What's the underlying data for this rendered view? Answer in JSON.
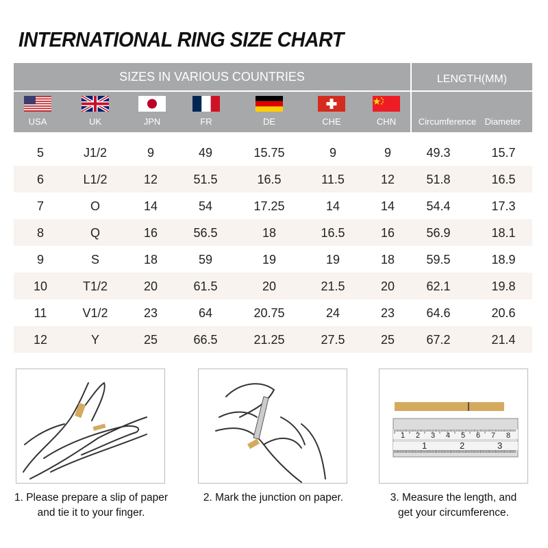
{
  "title": "INTERNATIONAL RING SIZE CHART",
  "header": {
    "sizes_label": "SIZES IN VARIOUS COUNTRIES",
    "length_label": "LENGTH(MM)",
    "countries": [
      {
        "code": "USA",
        "flag": "usa-flag"
      },
      {
        "code": "UK",
        "flag": "uk-flag"
      },
      {
        "code": "JPN",
        "flag": "japan-flag"
      },
      {
        "code": "FR",
        "flag": "france-flag"
      },
      {
        "code": "DE",
        "flag": "germany-flag"
      },
      {
        "code": "CHE",
        "flag": "switzerland-flag"
      },
      {
        "code": "CHN",
        "flag": "china-flag"
      }
    ],
    "length_columns": [
      "Circumference",
      "Diameter"
    ]
  },
  "rows": [
    [
      "5",
      "J1/2",
      "9",
      "49",
      "15.75",
      "9",
      "9",
      "49.3",
      "15.7"
    ],
    [
      "6",
      "L1/2",
      "12",
      "51.5",
      "16.5",
      "11.5",
      "12",
      "51.8",
      "16.5"
    ],
    [
      "7",
      "O",
      "14",
      "54",
      "17.25",
      "14",
      "14",
      "54.4",
      "17.3"
    ],
    [
      "8",
      "Q",
      "16",
      "56.5",
      "18",
      "16.5",
      "16",
      "56.9",
      "18.1"
    ],
    [
      "9",
      "S",
      "18",
      "59",
      "19",
      "19",
      "18",
      "59.5",
      "18.9"
    ],
    [
      "10",
      "T1/2",
      "20",
      "61.5",
      "20",
      "21.5",
      "20",
      "62.1",
      "19.8"
    ],
    [
      "11",
      "V1/2",
      "23",
      "64",
      "20.75",
      "24",
      "23",
      "64.6",
      "20.6"
    ],
    [
      "12",
      "Y",
      "25",
      "66.5",
      "21.25",
      "27.5",
      "25",
      "67.2",
      "21.4"
    ]
  ],
  "steps": [
    {
      "line1": "1. Please prepare a slip of paper",
      "line2": "and tie it to your finger."
    },
    {
      "line1": "2. Mark the junction on paper.",
      "line2": ""
    },
    {
      "line1": "3. Measure the length, and",
      "line2": "get your circumference."
    }
  ],
  "ruler": {
    "cm_ticks": [
      "1",
      "2",
      "3",
      "4",
      "5",
      "6",
      "7",
      "8"
    ],
    "inch_ticks": [
      "1",
      "2",
      "3"
    ]
  },
  "colors": {
    "header_bg": "#a7a8aa",
    "row_alt": "#f8f3ef",
    "paper_strip": "#d4aa5e"
  }
}
